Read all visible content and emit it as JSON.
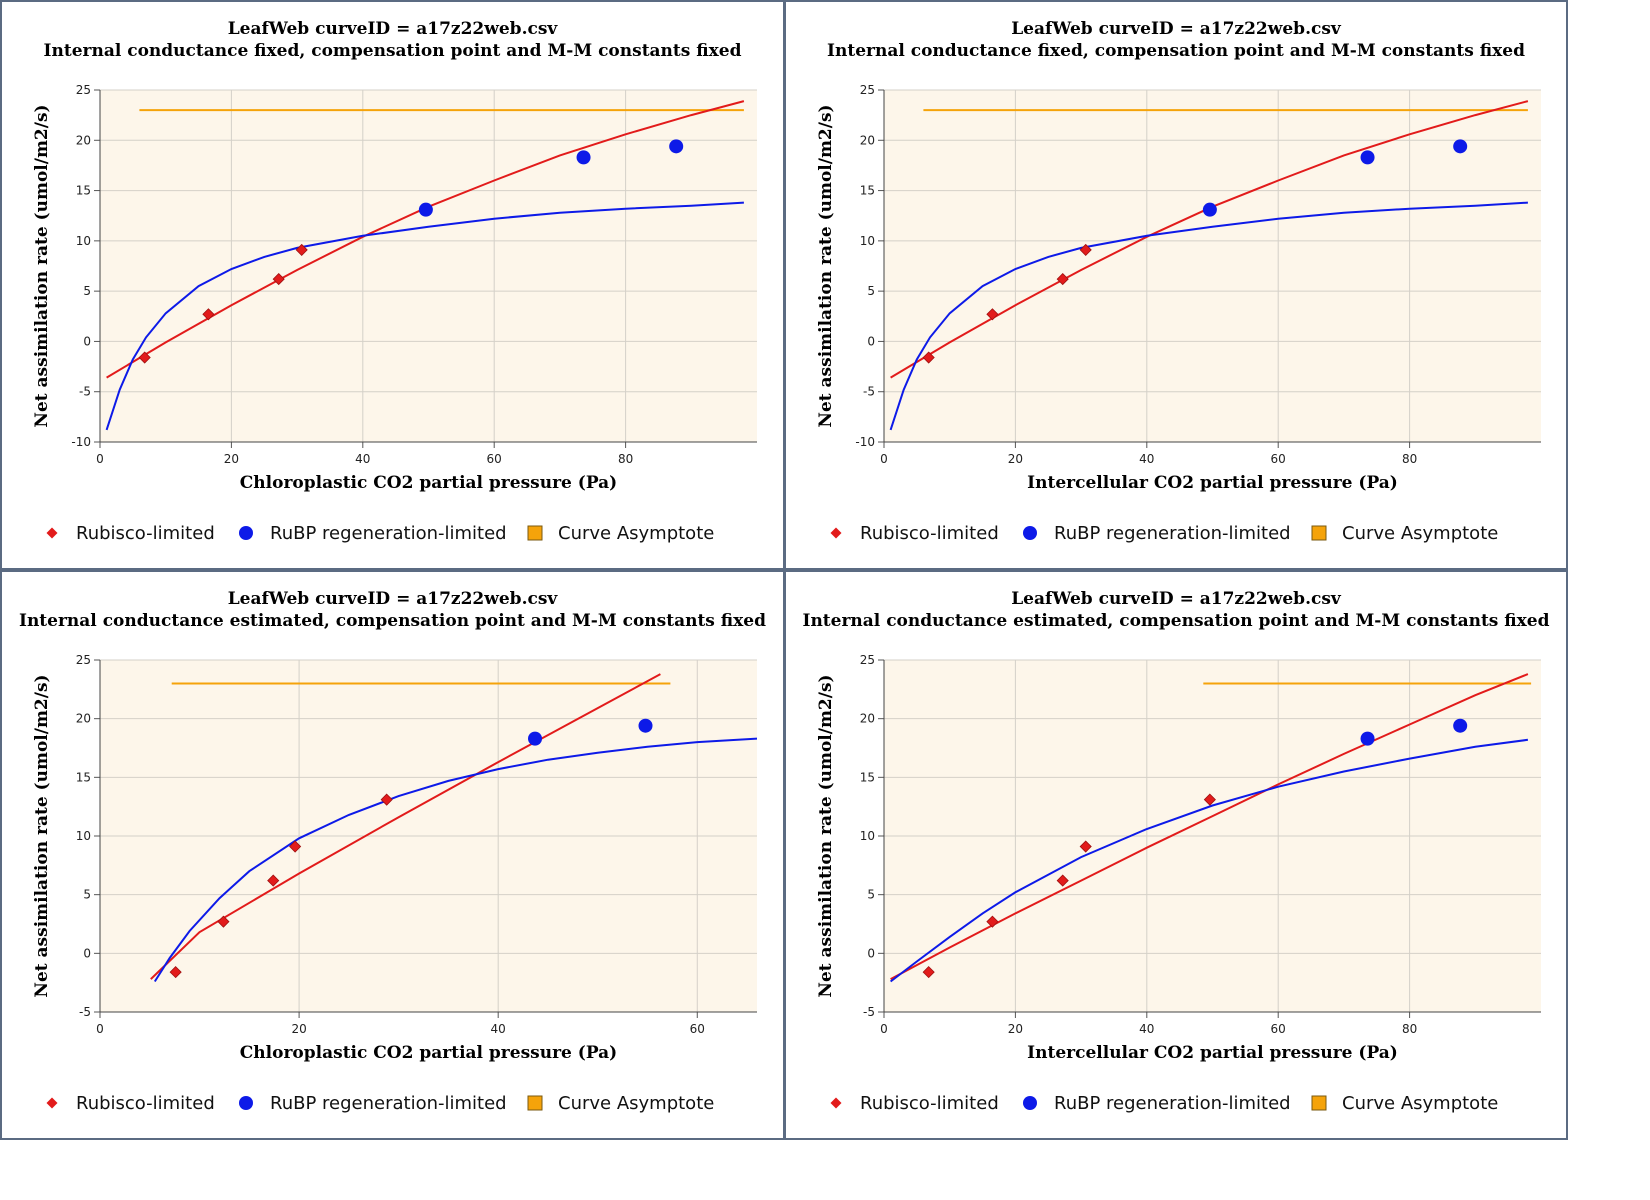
{
  "colors": {
    "rubisco": "#e21b1b",
    "rubp": "#0d1ae8",
    "asymptote": "#f5a30a",
    "plot_bg": "#fdf6ea",
    "frame": "#5b6b82"
  },
  "legend": {
    "rubisco": "Rubisco-limited",
    "rubp": "RuBP regeneration-limited",
    "asymptote": "Curve Asymptote"
  },
  "chart_data": [
    {
      "type": "scatter",
      "title": "LeafWeb curveID = a17z22web.csv",
      "subtitle": "Internal conductance fixed, compensation point and M-M constants fixed",
      "xlabel": "Chloroplastic CO2 partial pressure (Pa)",
      "ylabel": "Net assimilation rate (umol/m2/s)",
      "xlim": [
        0,
        100
      ],
      "ylim": [
        -10,
        25
      ],
      "xticks": [
        0,
        20,
        40,
        60,
        80
      ],
      "yticks": [
        -10,
        -5,
        0,
        5,
        10,
        15,
        20,
        25
      ],
      "grid": true,
      "legend_position": "bottom",
      "series": [
        {
          "name": "Rubisco-limited",
          "kind": "points",
          "marker": "diamond",
          "x": [
            6.8,
            16.5,
            27.2,
            30.7
          ],
          "y": [
            -1.6,
            2.7,
            6.2,
            9.1
          ]
        },
        {
          "name": "RuBP regeneration-limited",
          "kind": "points",
          "marker": "circle",
          "x": [
            49.6,
            73.6,
            87.7
          ],
          "y": [
            13.1,
            18.3,
            19.4
          ]
        },
        {
          "name": "Curve Asymptote",
          "kind": "line",
          "x": [
            6,
            98
          ],
          "y": [
            23,
            23
          ]
        },
        {
          "name": "Rubisco-limited",
          "kind": "line",
          "x": [
            1,
            10,
            20,
            30,
            40,
            50,
            60,
            70,
            80,
            90,
            98
          ],
          "y": [
            -3.6,
            -0.1,
            3.6,
            7.1,
            10.4,
            13.4,
            16.0,
            18.5,
            20.6,
            22.5,
            23.9
          ]
        },
        {
          "name": "RuBP regeneration-limited",
          "kind": "line",
          "x": [
            1,
            3,
            5,
            7,
            10,
            15,
            20,
            25,
            30,
            40,
            50,
            60,
            70,
            80,
            90,
            98
          ],
          "y": [
            -8.8,
            -4.8,
            -1.8,
            0.4,
            2.8,
            5.5,
            7.2,
            8.4,
            9.3,
            10.5,
            11.4,
            12.2,
            12.8,
            13.2,
            13.5,
            13.8
          ]
        }
      ]
    },
    {
      "type": "scatter",
      "title": "LeafWeb curveID = a17z22web.csv",
      "subtitle": "Internal conductance fixed, compensation point and M-M constants fixed",
      "xlabel": "Intercellular CO2 partial pressure (Pa)",
      "ylabel": "Net assimilation rate (umol/m2/s)",
      "xlim": [
        0,
        100
      ],
      "ylim": [
        -10,
        25
      ],
      "xticks": [
        0,
        20,
        40,
        60,
        80
      ],
      "yticks": [
        -10,
        -5,
        0,
        5,
        10,
        15,
        20,
        25
      ],
      "grid": true,
      "legend_position": "bottom",
      "series": [
        {
          "name": "Rubisco-limited",
          "kind": "points",
          "marker": "diamond",
          "x": [
            6.8,
            16.5,
            27.2,
            30.7
          ],
          "y": [
            -1.6,
            2.7,
            6.2,
            9.1
          ]
        },
        {
          "name": "RuBP regeneration-limited",
          "kind": "points",
          "marker": "circle",
          "x": [
            49.6,
            73.6,
            87.7
          ],
          "y": [
            13.1,
            18.3,
            19.4
          ]
        },
        {
          "name": "Curve Asymptote",
          "kind": "line",
          "x": [
            6,
            98
          ],
          "y": [
            23,
            23
          ]
        },
        {
          "name": "Rubisco-limited",
          "kind": "line",
          "x": [
            1,
            10,
            20,
            30,
            40,
            50,
            60,
            70,
            80,
            90,
            98
          ],
          "y": [
            -3.6,
            -0.1,
            3.6,
            7.1,
            10.4,
            13.4,
            16.0,
            18.5,
            20.6,
            22.5,
            23.9
          ]
        },
        {
          "name": "RuBP regeneration-limited",
          "kind": "line",
          "x": [
            1,
            3,
            5,
            7,
            10,
            15,
            20,
            25,
            30,
            40,
            50,
            60,
            70,
            80,
            90,
            98
          ],
          "y": [
            -8.8,
            -4.8,
            -1.8,
            0.4,
            2.8,
            5.5,
            7.2,
            8.4,
            9.3,
            10.5,
            11.4,
            12.2,
            12.8,
            13.2,
            13.5,
            13.8
          ]
        }
      ]
    },
    {
      "type": "scatter",
      "title": "LeafWeb curveID = a17z22web.csv",
      "subtitle": "Internal conductance estimated, compensation point and M-M constants fixed",
      "xlabel": "Chloroplastic CO2 partial pressure (Pa)",
      "ylabel": "Net assimilation rate (umol/m2/s)",
      "xlim": [
        0,
        66
      ],
      "ylim": [
        -5,
        25
      ],
      "xticks": [
        0,
        20,
        40,
        60
      ],
      "yticks": [
        -5,
        0,
        5,
        10,
        15,
        20,
        25
      ],
      "grid": true,
      "legend_position": "bottom",
      "series": [
        {
          "name": "Rubisco-limited",
          "kind": "points",
          "marker": "diamond",
          "x": [
            7.6,
            12.4,
            17.4,
            19.6,
            28.8
          ],
          "y": [
            -1.6,
            2.7,
            6.2,
            9.1,
            13.1
          ]
        },
        {
          "name": "RuBP regeneration-limited",
          "kind": "points",
          "marker": "circle",
          "x": [
            43.7,
            54.8
          ],
          "y": [
            18.3,
            19.4
          ]
        },
        {
          "name": "Curve Asymptote",
          "kind": "line",
          "x": [
            7.2,
            57.3
          ],
          "y": [
            23,
            23
          ]
        },
        {
          "name": "Rubisco-limited",
          "kind": "line",
          "x": [
            5.1,
            10,
            20,
            30,
            40,
            50,
            56.3
          ],
          "y": [
            -2.2,
            1.8,
            6.8,
            11.6,
            16.3,
            20.9,
            23.8
          ]
        },
        {
          "name": "RuBP regeneration-limited",
          "kind": "line",
          "x": [
            5.5,
            7,
            9,
            12,
            15,
            20,
            25,
            30,
            35,
            40,
            45,
            50,
            55,
            60,
            66
          ],
          "y": [
            -2.4,
            -0.4,
            1.9,
            4.7,
            7.0,
            9.8,
            11.8,
            13.4,
            14.7,
            15.7,
            16.5,
            17.1,
            17.6,
            18.0,
            18.3
          ]
        }
      ]
    },
    {
      "type": "scatter",
      "title": "LeafWeb curveID = a17z22web.csv",
      "subtitle": "Internal conductance estimated, compensation point and M-M constants fixed",
      "xlabel": "Intercellular CO2 partial pressure (Pa)",
      "ylabel": "Net assimilation rate (umol/m2/s)",
      "xlim": [
        0,
        100
      ],
      "ylim": [
        -5,
        25
      ],
      "xticks": [
        0,
        20,
        40,
        60,
        80
      ],
      "yticks": [
        -5,
        0,
        5,
        10,
        15,
        20,
        25
      ],
      "grid": true,
      "legend_position": "bottom",
      "series": [
        {
          "name": "Rubisco-limited",
          "kind": "points",
          "marker": "diamond",
          "x": [
            6.8,
            16.5,
            27.2,
            30.7,
            49.6
          ],
          "y": [
            -1.6,
            2.7,
            6.2,
            9.1,
            13.1
          ]
        },
        {
          "name": "RuBP regeneration-limited",
          "kind": "points",
          "marker": "circle",
          "x": [
            73.6,
            87.7
          ],
          "y": [
            18.3,
            19.4
          ]
        },
        {
          "name": "Curve Asymptote",
          "kind": "line",
          "x": [
            48.6,
            98.5
          ],
          "y": [
            23,
            23
          ]
        },
        {
          "name": "Rubisco-limited",
          "kind": "line",
          "x": [
            1,
            10,
            20,
            30,
            40,
            50,
            60,
            70,
            80,
            90,
            98
          ],
          "y": [
            -2.2,
            0.5,
            3.4,
            6.2,
            9.0,
            11.7,
            14.4,
            17.0,
            19.5,
            22.0,
            23.8
          ]
        },
        {
          "name": "RuBP regeneration-limited",
          "kind": "line",
          "x": [
            1,
            5,
            10,
            15,
            20,
            30,
            40,
            50,
            60,
            70,
            80,
            90,
            98
          ],
          "y": [
            -2.4,
            -0.7,
            1.4,
            3.4,
            5.2,
            8.2,
            10.6,
            12.6,
            14.2,
            15.5,
            16.6,
            17.6,
            18.2
          ]
        }
      ]
    }
  ]
}
